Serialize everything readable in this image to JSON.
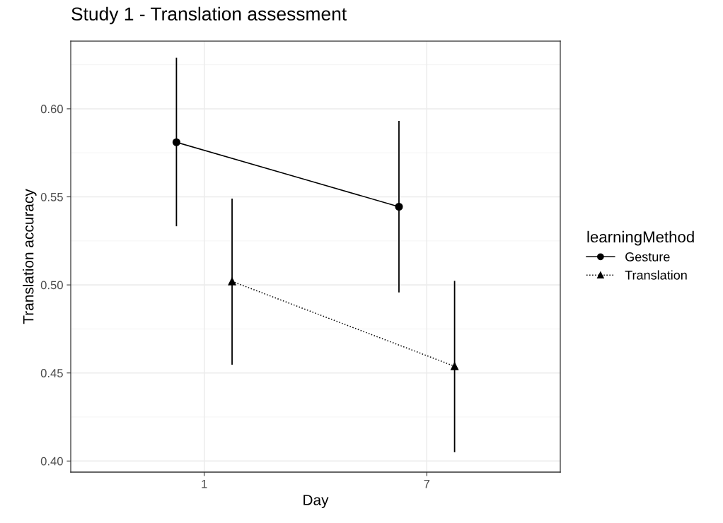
{
  "chart_data": {
    "type": "line",
    "title": "Study 1 - Translation assessment",
    "xlabel": "Day",
    "ylabel": "Translation accuracy",
    "legend_title": "learningMethod",
    "xlim": [
      -2.6,
      10.6
    ],
    "xticks": [
      1,
      7
    ],
    "series": [
      {
        "name": "Gesture",
        "color": "#000000",
        "x": [
          0.25,
          6.25
        ],
        "values": [
          0.581,
          0.5444
        ],
        "errors": [
          [
            0.5333,
            0.629
          ],
          [
            0.4957,
            0.5932
          ]
        ],
        "marker": "circle",
        "line_style": "solid"
      },
      {
        "name": "Translation",
        "color": "#000000",
        "x": [
          1.75,
          7.75
        ],
        "values": [
          0.502,
          0.4538
        ],
        "errors": [
          [
            0.4547,
            0.549
          ],
          [
            0.405,
            0.5023
          ]
        ],
        "marker": "triangle",
        "line_style": "dotted"
      }
    ],
    "ylim": [
      0.3937,
      0.6385
    ],
    "yticks": [
      {
        "value": 0.4,
        "label": "0.40"
      },
      {
        "value": 0.45,
        "label": "0.45"
      },
      {
        "value": 0.5,
        "label": "0.50"
      },
      {
        "value": 0.55,
        "label": "0.55"
      },
      {
        "value": 0.6,
        "label": "0.60"
      }
    ],
    "grid": true,
    "legend": "right"
  }
}
